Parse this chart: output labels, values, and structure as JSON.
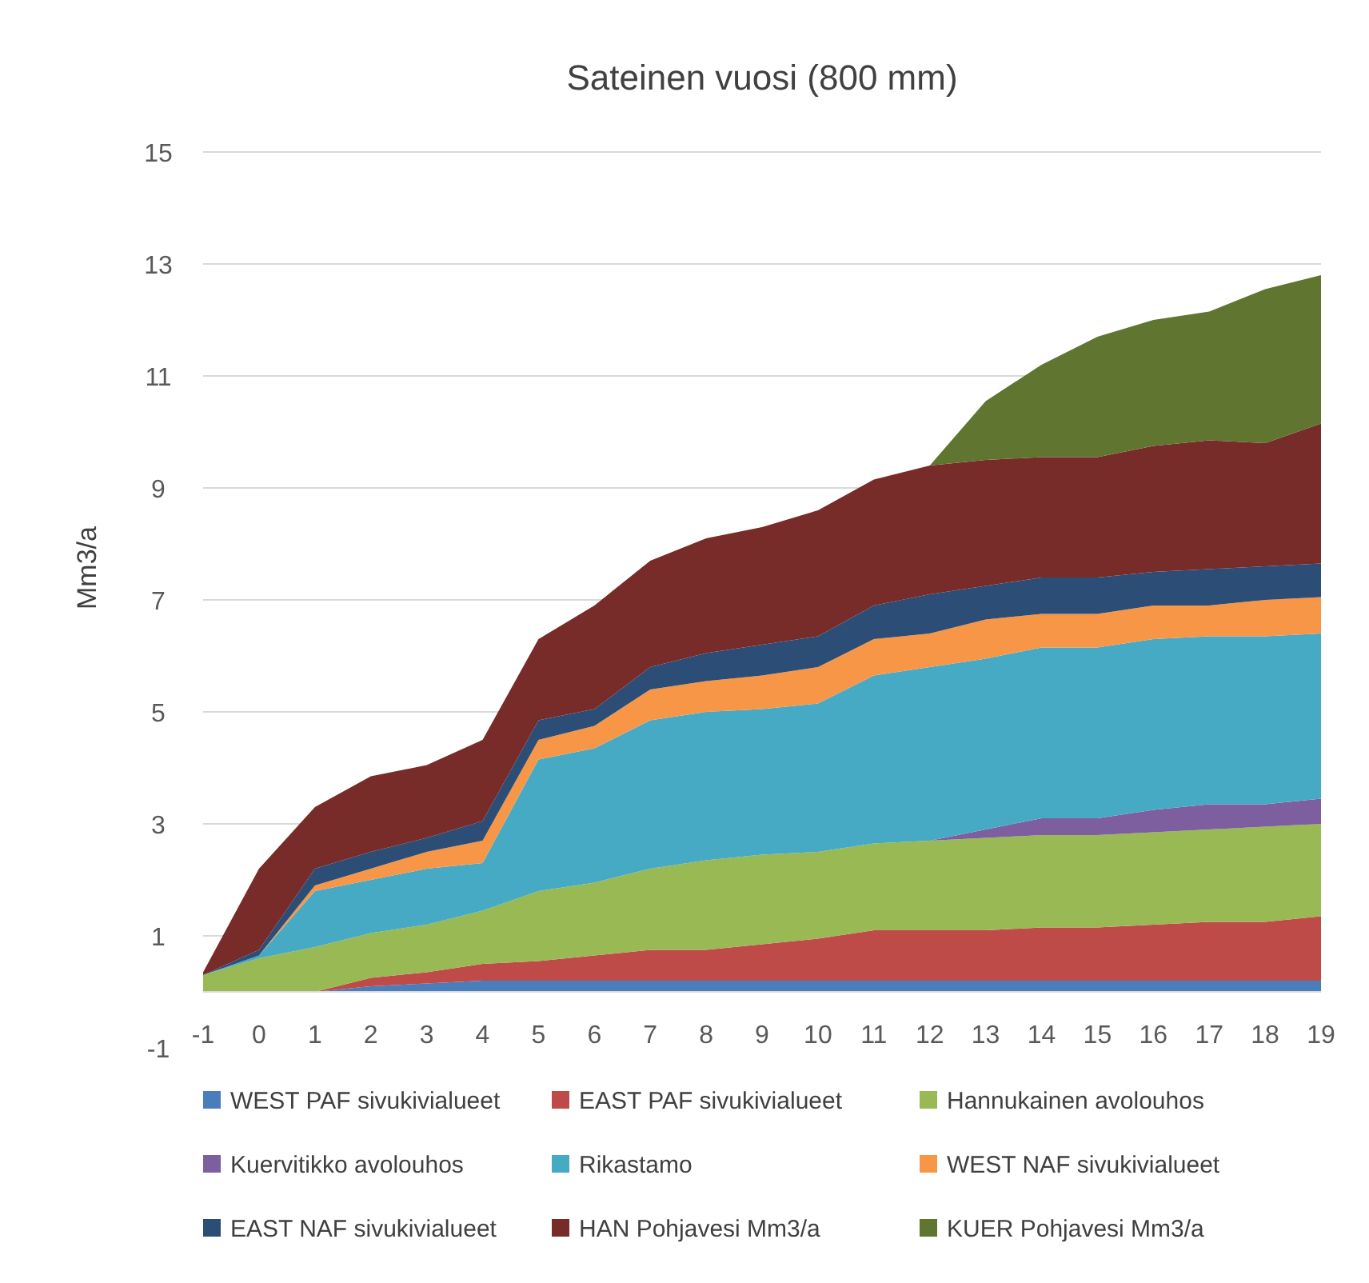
{
  "chart_data": {
    "type": "area",
    "stacked": true,
    "title": "Sateinen vuosi (800 mm)",
    "ylabel": "Mm3/a",
    "x": [
      -1,
      0,
      1,
      2,
      3,
      4,
      5,
      6,
      7,
      8,
      9,
      10,
      11,
      12,
      13,
      14,
      15,
      16,
      17,
      18,
      19
    ],
    "xlim": [
      -1,
      19
    ],
    "xticks": [
      -1,
      0,
      1,
      2,
      3,
      4,
      5,
      6,
      7,
      8,
      9,
      10,
      11,
      12,
      13,
      14,
      15,
      16,
      17,
      18,
      19
    ],
    "ylim": [
      -1,
      15
    ],
    "yticks": [
      -1,
      1,
      3,
      5,
      7,
      9,
      11,
      13,
      15
    ],
    "grid": "y",
    "legend": "bottom",
    "series": [
      {
        "name": "WEST PAF sivukivialueet",
        "color": "#4a7ebb",
        "values": [
          0,
          0,
          0,
          0.1,
          0.15,
          0.2,
          0.2,
          0.2,
          0.2,
          0.2,
          0.2,
          0.2,
          0.2,
          0.2,
          0.2,
          0.2,
          0.2,
          0.2,
          0.2,
          0.2,
          0.2
        ]
      },
      {
        "name": "EAST PAF sivukivialueet",
        "color": "#be4b48",
        "values": [
          0,
          0,
          0,
          0.15,
          0.2,
          0.3,
          0.35,
          0.45,
          0.55,
          0.55,
          0.65,
          0.75,
          0.9,
          0.9,
          0.9,
          0.95,
          0.95,
          1.0,
          1.05,
          1.05,
          1.15
        ]
      },
      {
        "name": "Hannukainen avolouhos",
        "color": "#98b954",
        "values": [
          0.3,
          0.6,
          0.8,
          0.8,
          0.85,
          0.95,
          1.25,
          1.3,
          1.45,
          1.6,
          1.6,
          1.55,
          1.55,
          1.6,
          1.65,
          1.65,
          1.65,
          1.65,
          1.65,
          1.7,
          1.65
        ]
      },
      {
        "name": "Kuervitikko avolouhos",
        "color": "#7d5fa0",
        "values": [
          0,
          0,
          0,
          0,
          0,
          0,
          0,
          0,
          0,
          0,
          0,
          0,
          0,
          0,
          0.15,
          0.3,
          0.3,
          0.4,
          0.45,
          0.4,
          0.45
        ]
      },
      {
        "name": "Rikastamo",
        "color": "#46aac5",
        "values": [
          0,
          0.05,
          1.0,
          0.95,
          1.0,
          0.85,
          2.35,
          2.4,
          2.65,
          2.65,
          2.6,
          2.65,
          3.0,
          3.1,
          3.05,
          3.05,
          3.05,
          3.05,
          3.0,
          3.0,
          2.95
        ]
      },
      {
        "name": "WEST NAF sivukivialueet",
        "color": "#f79646",
        "values": [
          0,
          0,
          0.1,
          0.2,
          0.3,
          0.4,
          0.35,
          0.4,
          0.55,
          0.55,
          0.6,
          0.65,
          0.65,
          0.6,
          0.7,
          0.6,
          0.6,
          0.6,
          0.55,
          0.65,
          0.65
        ]
      },
      {
        "name": "EAST NAF sivukivialueet",
        "color": "#2c4d75",
        "values": [
          0,
          0.1,
          0.3,
          0.3,
          0.25,
          0.35,
          0.35,
          0.3,
          0.4,
          0.5,
          0.55,
          0.55,
          0.6,
          0.7,
          0.6,
          0.65,
          0.65,
          0.6,
          0.65,
          0.6,
          0.6
        ]
      },
      {
        "name": "HAN Pohjavesi Mm3/a",
        "color": "#772c2a",
        "values": [
          0.05,
          1.45,
          1.1,
          1.35,
          1.3,
          1.45,
          1.45,
          1.85,
          1.9,
          2.05,
          2.1,
          2.25,
          2.25,
          2.3,
          2.25,
          2.15,
          2.15,
          2.25,
          2.3,
          2.2,
          2.5
        ]
      },
      {
        "name": "KUER Pohjavesi Mm3/a",
        "color": "#5f7530",
        "values": [
          0,
          0,
          0,
          0,
          0,
          0,
          0,
          0,
          0,
          0,
          0,
          0,
          0,
          0,
          1.05,
          1.65,
          2.15,
          2.25,
          2.3,
          2.75,
          2.65
        ]
      }
    ]
  }
}
